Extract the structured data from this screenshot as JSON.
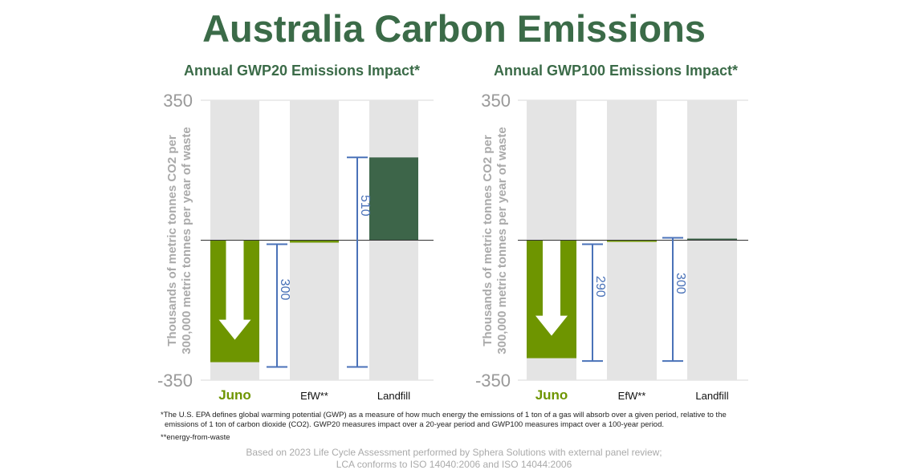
{
  "title": "Australia Carbon Emissions",
  "colors": {
    "title": "#3b6b48",
    "juno": "#6e9500",
    "efw": "#6e9500",
    "landfill": "#3d6549",
    "band": "#e4e4e4",
    "errorbar": "#4a72b8",
    "axis_text": "#999999"
  },
  "footnotes": {
    "gwp_line1": "*The U.S. EPA defines global warming potential (GWP) as a measure of how much energy the emissions of 1 ton of a gas will absorb over a given period, relative to the",
    "gwp_line2": "emissions of 1 ton of carbon dioxide (CO2). GWP20 measures impact over a 20-year period and GWP100 measures impact over a 100-year period.",
    "efw": "**energy-from-waste"
  },
  "source": {
    "line1": "Based on 2023 Life Cycle Assessment performed by Sphera Solutions with external panel review;",
    "line2": "LCA conforms to ISO 14040:2006 and ISO 14044:2006"
  },
  "chart_data": [
    {
      "type": "bar",
      "title": "Annual GWP20 Emissions Impact*",
      "ylabel_line1": "Thousands of metric tonnes CO2 per",
      "ylabel_line2": "300,000 metric tonnes per year of waste",
      "ylim": [
        -350,
        350
      ],
      "ytick_labels": [
        "350",
        "-350"
      ],
      "categories": [
        "Juno",
        "EfW**",
        "Landfill"
      ],
      "values": [
        -305,
        -6,
        207
      ],
      "annotations": [
        {
          "label": "300",
          "from": -10,
          "to": -317
        },
        {
          "label": "510",
          "from": 207,
          "to": -317
        }
      ],
      "juno_arrow": "down-arrow-icon"
    },
    {
      "type": "bar",
      "title": "Annual GWP100 Emissions Impact*",
      "ylabel_line1": "Thousands of metric tonnes CO2 per",
      "ylabel_line2": "300,000 metric tonnes per year of waste",
      "ylim": [
        -350,
        350
      ],
      "ytick_labels": [
        "350",
        "-350"
      ],
      "categories": [
        "Juno",
        "EfW**",
        "Landfill"
      ],
      "values": [
        -295,
        -3,
        4
      ],
      "annotations": [
        {
          "label": "290",
          "from": -10,
          "to": -302
        },
        {
          "label": "300",
          "from": 6,
          "to": -302
        }
      ],
      "juno_arrow": "down-arrow-icon"
    }
  ]
}
